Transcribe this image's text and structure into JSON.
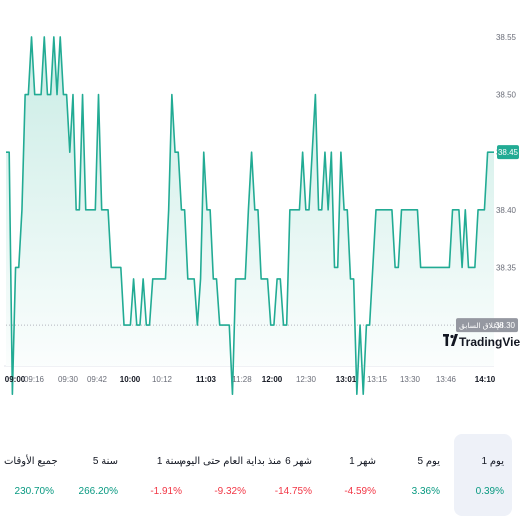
{
  "chart_data": {
    "type": "area",
    "y_ticks": [
      38.35,
      38.4,
      38.45,
      38.5,
      38.55
    ],
    "ylim": [
      38.235,
      38.582
    ],
    "x_labels": [
      {
        "t": "09:00",
        "major": true
      },
      {
        "t": "09:16",
        "major": false
      },
      {
        "t": "09:30",
        "major": false
      },
      {
        "t": "09:42",
        "major": false
      },
      {
        "t": "10:00",
        "major": true
      },
      {
        "t": "10:12",
        "major": false
      },
      {
        "t": "11:03",
        "major": true
      },
      {
        "t": "11:28",
        "major": false
      },
      {
        "t": "12:00",
        "major": true
      },
      {
        "t": "12:30",
        "major": false
      },
      {
        "t": "13:01",
        "major": true
      },
      {
        "t": "13:15",
        "major": false
      },
      {
        "t": "13:30",
        "major": false
      },
      {
        "t": "13:46",
        "major": false
      },
      {
        "t": "14:10",
        "major": true
      }
    ],
    "values": [
      38.45,
      38.45,
      38.24,
      38.35,
      38.35,
      38.4,
      38.5,
      38.5,
      38.55,
      38.5,
      38.5,
      38.5,
      38.55,
      38.5,
      38.5,
      38.55,
      38.5,
      38.55,
      38.5,
      38.5,
      38.45,
      38.5,
      38.4,
      38.4,
      38.5,
      38.4,
      38.4,
      38.4,
      38.4,
      38.5,
      38.4,
      38.4,
      38.4,
      38.35,
      38.35,
      38.35,
      38.35,
      38.3,
      38.3,
      38.3,
      38.34,
      38.3,
      38.3,
      38.34,
      38.3,
      38.3,
      38.34,
      38.34,
      38.34,
      38.34,
      38.34,
      38.4,
      38.5,
      38.45,
      38.45,
      38.4,
      38.4,
      38.34,
      38.34,
      38.34,
      38.3,
      38.34,
      38.45,
      38.4,
      38.4,
      38.34,
      38.34,
      38.3,
      38.3,
      38.3,
      38.3,
      38.24,
      38.34,
      38.34,
      38.34,
      38.34,
      38.4,
      38.45,
      38.4,
      38.4,
      38.34,
      38.34,
      38.34,
      38.3,
      38.3,
      38.34,
      38.34,
      38.3,
      38.3,
      38.4,
      38.4,
      38.4,
      38.4,
      38.45,
      38.4,
      38.4,
      38.45,
      38.5,
      38.4,
      38.4,
      38.45,
      38.4,
      38.45,
      38.35,
      38.35,
      38.45,
      38.4,
      38.4,
      38.34,
      38.34,
      38.24,
      38.3,
      38.24,
      38.3,
      38.3,
      38.35,
      38.4,
      38.4,
      38.4,
      38.4,
      38.4,
      38.4,
      38.35,
      38.35,
      38.4,
      38.4,
      38.4,
      38.4,
      38.4,
      38.4,
      38.35,
      38.35,
      38.35,
      38.35,
      38.35,
      38.35,
      38.35,
      38.35,
      38.35,
      38.35,
      38.4,
      38.4,
      38.4,
      38.35,
      38.4,
      38.35,
      38.35,
      38.35,
      38.4,
      38.4,
      38.4,
      38.45,
      38.45,
      38.45
    ],
    "current_price": "38.45",
    "prev_close_value": 38.3,
    "prev_close_label": "38.30",
    "prev_close_text": "الإغلاق السابق",
    "colors": {
      "line": "#22ab94",
      "fill_top": "#c9ece5",
      "fill_bottom": "#ffffff",
      "badge": "#22ab94",
      "prev_badge": "#9598a1",
      "prev_line": "#b2b5be"
    }
  },
  "watermark": "TradingView",
  "performance": [
    {
      "label": "1 يوم",
      "value": "0.39%",
      "trend": "pos",
      "active": true
    },
    {
      "label": "5 يوم",
      "value": "3.36%",
      "trend": "pos",
      "active": false
    },
    {
      "label": "1 شهر",
      "value": "-4.59%",
      "trend": "neg",
      "active": false
    },
    {
      "label": "6 شهر",
      "value": "-14.75%",
      "trend": "neg",
      "active": false
    },
    {
      "label": "منذ بداية العام حتى اليوم",
      "value": "-9.32%",
      "trend": "neg",
      "active": false
    },
    {
      "label": "1 سنة",
      "value": "-1.91%",
      "trend": "neg",
      "active": false
    },
    {
      "label": "5 سنة",
      "value": "266.20%",
      "trend": "pos",
      "active": false
    },
    {
      "label": "جميع الأوقات",
      "value": "230.70%",
      "trend": "pos",
      "active": false
    }
  ]
}
